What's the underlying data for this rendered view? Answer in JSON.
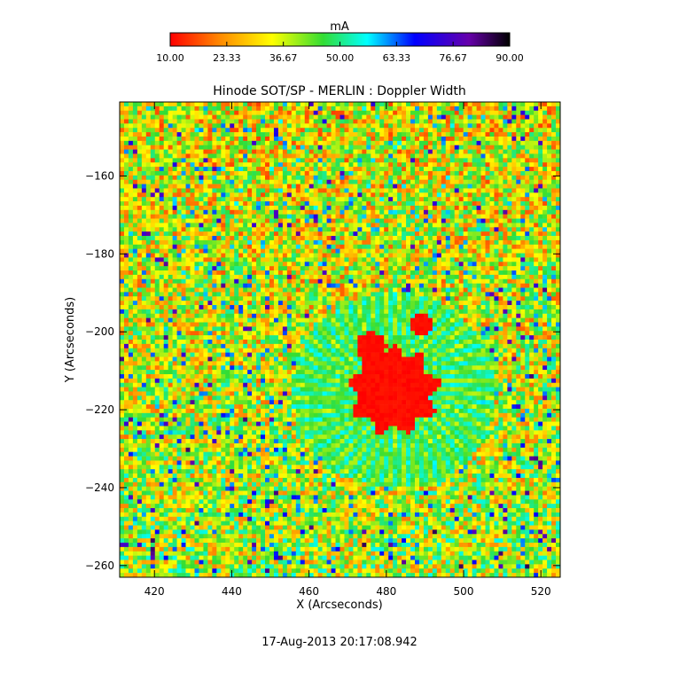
{
  "chart_data": {
    "type": "heatmap",
    "title": "Hinode SOT/SP - MERLIN : Doppler Width",
    "xlabel": "X (Arcseconds)",
    "ylabel": "Y (Arcseconds)",
    "xlim": [
      411,
      525
    ],
    "ylim": [
      -263,
      -141
    ],
    "x_ticks": [
      420,
      440,
      460,
      480,
      500,
      520
    ],
    "y_ticks": [
      -160,
      -180,
      -200,
      -220,
      -240,
      -260
    ],
    "colorbar": {
      "label": "mA",
      "range": [
        10,
        90
      ],
      "ticks": [
        "10.00",
        "23.33",
        "36.67",
        "50.00",
        "63.33",
        "76.67",
        "90.00"
      ],
      "colormap": "rainbow"
    },
    "features": {
      "umbra_center": [
        482,
        -215
      ],
      "umbra_radius_arcsec": 12,
      "umbra_value": 10,
      "background_value_range": [
        15,
        50
      ],
      "penumbra_value_range": [
        35,
        60
      ]
    },
    "timestamp": "17-Aug-2013 20:17:08.942",
    "grid": false
  }
}
